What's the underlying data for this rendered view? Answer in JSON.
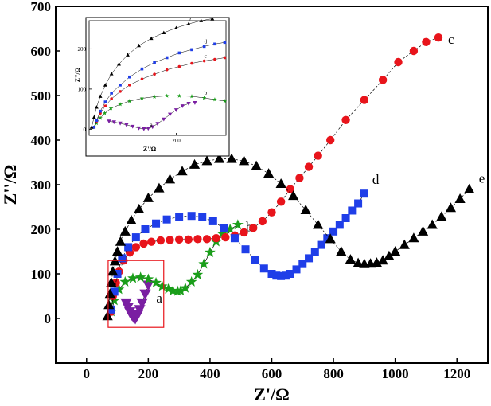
{
  "chart_data": {
    "type": "scatter",
    "title": "",
    "xlabel": "Z'/Ω",
    "ylabel": "Z''/Ω",
    "xlim": [
      -100,
      1300
    ],
    "ylim": [
      -100,
      700
    ],
    "xticks": [
      "0",
      "200",
      "400",
      "600",
      "800",
      "1000",
      "1200"
    ],
    "yticks": [
      "0",
      "100",
      "200",
      "300",
      "400",
      "500",
      "600",
      "700"
    ],
    "legend": "labels next to curves",
    "series": [
      {
        "name": "a",
        "color": "#7a1fa2",
        "marker": "triangle-down",
        "x": [
          128,
          134,
          140,
          146,
          152,
          158,
          165,
          172,
          180,
          190,
          200
        ],
        "y": [
          35,
          25,
          15,
          8,
          3,
          0,
          8,
          20,
          35,
          55,
          75
        ]
      },
      {
        "name": "b",
        "color": "#1a9e1a",
        "marker": "star",
        "x": [
          80,
          90,
          105,
          125,
          150,
          175,
          200,
          225,
          245,
          265,
          280,
          295,
          305,
          320,
          340,
          360,
          380,
          400,
          420,
          440,
          465,
          490
        ],
        "y": [
          15,
          40,
          65,
          82,
          90,
          92,
          88,
          80,
          72,
          66,
          62,
          61,
          62,
          68,
          82,
          98,
          122,
          148,
          172,
          190,
          200,
          210
        ]
      },
      {
        "name": "c",
        "color": "#e8141b",
        "marker": "circle",
        "x": [
          80,
          85,
          95,
          105,
          120,
          140,
          160,
          185,
          210,
          240,
          270,
          300,
          330,
          360,
          390,
          420,
          450,
          480,
          510,
          540,
          570,
          600,
          630,
          660,
          690,
          720,
          750,
          790,
          840,
          900,
          960,
          1010,
          1060,
          1100,
          1140
        ],
        "y": [
          15,
          50,
          80,
          105,
          130,
          148,
          160,
          168,
          172,
          175,
          176,
          177,
          177,
          178,
          178,
          180,
          182,
          186,
          193,
          203,
          218,
          238,
          262,
          290,
          315,
          340,
          365,
          400,
          445,
          490,
          535,
          575,
          600,
          620,
          630
        ]
      },
      {
        "name": "d",
        "color": "#1f3ee8",
        "marker": "square",
        "x": [
          80,
          90,
          100,
          115,
          135,
          160,
          190,
          225,
          260,
          300,
          340,
          375,
          410,
          445,
          480,
          515,
          545,
          575,
          600,
          615,
          630,
          645,
          660,
          680,
          700,
          720,
          740,
          760,
          780,
          800,
          820,
          840,
          860,
          880,
          900
        ],
        "y": [
          20,
          60,
          100,
          135,
          160,
          182,
          200,
          213,
          222,
          228,
          230,
          227,
          218,
          202,
          180,
          155,
          132,
          112,
          100,
          96,
          95,
          96,
          100,
          110,
          122,
          135,
          150,
          165,
          180,
          195,
          210,
          225,
          242,
          258,
          280
        ]
      },
      {
        "name": "e",
        "color": "#000000",
        "marker": "triangle-up",
        "x": [
          68,
          72,
          76,
          80,
          85,
          92,
          100,
          110,
          125,
          145,
          170,
          200,
          235,
          270,
          310,
          350,
          390,
          430,
          470,
          510,
          550,
          590,
          630,
          670,
          710,
          750,
          790,
          825,
          855,
          880,
          900,
          920,
          940,
          960,
          980,
          1000,
          1030,
          1060,
          1090,
          1120,
          1150,
          1180,
          1210,
          1240
        ],
        "y": [
          5,
          30,
          55,
          80,
          105,
          128,
          150,
          172,
          195,
          220,
          245,
          270,
          292,
          312,
          330,
          345,
          353,
          358,
          358,
          353,
          342,
          325,
          302,
          275,
          243,
          210,
          178,
          150,
          132,
          124,
          122,
          123,
          125,
          130,
          140,
          150,
          165,
          180,
          195,
          210,
          228,
          248,
          268,
          290
        ]
      }
    ],
    "highlight_box": {
      "x": [
        70,
        250
      ],
      "y": [
        -20,
        130
      ]
    },
    "inset": {
      "xlabel": "Z'/Ω",
      "ylabel": "Z''/Ω",
      "xlim": [
        60,
        280
      ],
      "ylim": [
        -15,
        270
      ],
      "xticks": [
        "200"
      ],
      "yticks": [
        "0",
        "100",
        "200"
      ],
      "series": [
        {
          "name": "a",
          "color": "#7a1fa2",
          "marker": "triangle-down",
          "x": [
            92,
            100,
            110,
            120,
            130,
            140,
            148,
            155,
            162,
            170,
            180,
            190,
            200,
            210,
            220,
            230
          ],
          "y": [
            20,
            18,
            15,
            11,
            7,
            3,
            1,
            2,
            6,
            14,
            25,
            37,
            48,
            58,
            64,
            66
          ]
        },
        {
          "name": "b",
          "color": "#1a9e1a",
          "marker": "star",
          "x": [
            68,
            72,
            78,
            85,
            95,
            110,
            125,
            145,
            165,
            185,
            205,
            225,
            245,
            262,
            278
          ],
          "y": [
            5,
            15,
            28,
            40,
            52,
            62,
            70,
            77,
            81,
            83,
            83,
            82,
            78,
            74,
            70
          ]
        },
        {
          "name": "c",
          "color": "#e8141b",
          "marker": "circle",
          "x": [
            68,
            72,
            78,
            86,
            96,
            110,
            125,
            145,
            165,
            185,
            205,
            225,
            245,
            262,
            278
          ],
          "y": [
            5,
            20,
            40,
            58,
            76,
            94,
            110,
            125,
            137,
            148,
            156,
            164,
            170,
            174,
            178
          ]
        },
        {
          "name": "d",
          "color": "#1f3ee8",
          "marker": "square",
          "x": [
            68,
            72,
            78,
            86,
            96,
            110,
            125,
            145,
            165,
            185,
            205,
            225,
            245,
            262,
            278
          ],
          "y": [
            5,
            22,
            45,
            68,
            90,
            110,
            130,
            150,
            166,
            178,
            190,
            198,
            206,
            212,
            216
          ]
        },
        {
          "name": "e",
          "color": "#000000",
          "marker": "triangle-up",
          "x": [
            64,
            68,
            72,
            78,
            86,
            96,
            108,
            122,
            140,
            160,
            180,
            200,
            220,
            240,
            258
          ],
          "y": [
            5,
            30,
            55,
            82,
            110,
            138,
            162,
            185,
            208,
            226,
            240,
            252,
            262,
            270,
            275
          ]
        }
      ]
    }
  }
}
